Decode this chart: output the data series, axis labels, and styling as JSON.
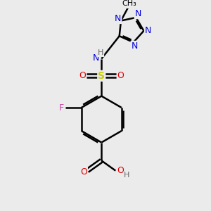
{
  "background_color": "#ebebeb",
  "atom_colors": {
    "C": "#000000",
    "N": "#0000dd",
    "O": "#dd0000",
    "S": "#cccc00",
    "F": "#cc44aa",
    "H": "#666666"
  },
  "figsize": [
    3.0,
    3.0
  ],
  "dpi": 100
}
